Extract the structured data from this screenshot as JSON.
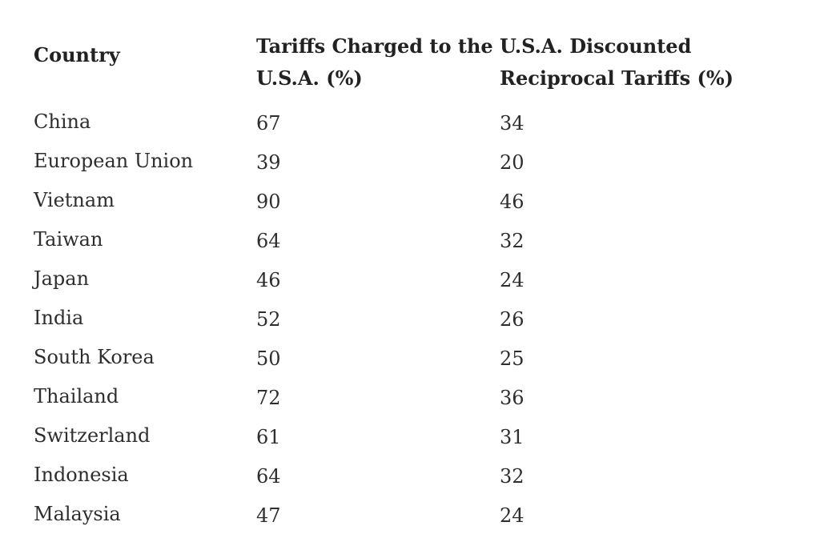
{
  "table": {
    "headers": {
      "country": "Country",
      "charged": "Tariffs Charged to the U.S.A. (%)",
      "reciprocal": "U.S.A. Discounted Reciprocal Tariffs (%)"
    },
    "rows": [
      {
        "country": "China",
        "charged": "67",
        "reciprocal": "34"
      },
      {
        "country": "European Union",
        "charged": "39",
        "reciprocal": "20"
      },
      {
        "country": "Vietnam",
        "charged": "90",
        "reciprocal": "46"
      },
      {
        "country": "Taiwan",
        "charged": "64",
        "reciprocal": "32"
      },
      {
        "country": "Japan",
        "charged": "46",
        "reciprocal": "24"
      },
      {
        "country": "India",
        "charged": "52",
        "reciprocal": "26"
      },
      {
        "country": "South Korea",
        "charged": "50",
        "reciprocal": "25"
      },
      {
        "country": "Thailand",
        "charged": "72",
        "reciprocal": "36"
      },
      {
        "country": "Switzerland",
        "charged": "61",
        "reciprocal": "31"
      },
      {
        "country": "Indonesia",
        "charged": "64",
        "reciprocal": "32"
      },
      {
        "country": "Malaysia",
        "charged": "47",
        "reciprocal": "24"
      }
    ]
  }
}
